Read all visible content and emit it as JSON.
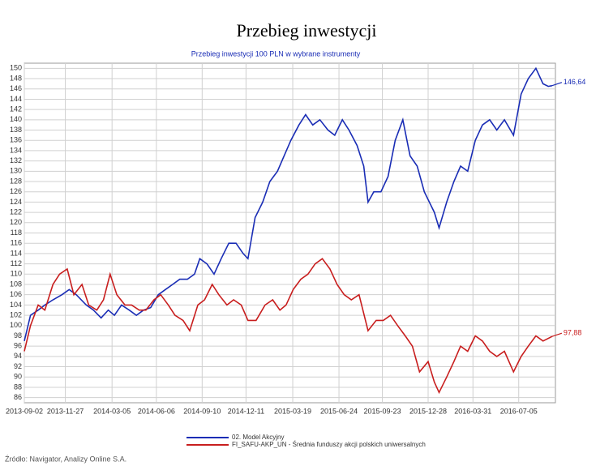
{
  "chart_data": {
    "type": "line",
    "title": "Przebieg inwestycji",
    "subtitle": "Przebieg inwestycji 100 PLN w wybrane instrumenty",
    "source": "Źródło: Navigator, Analizy Online S.A.",
    "xlim": [
      "2013-09-02",
      "2016-09-20"
    ],
    "xticks": [
      "2013-09-02",
      "2013-11-27",
      "2014-03-05",
      "2014-06-06",
      "2014-09-10",
      "2014-12-11",
      "2015-03-19",
      "2015-06-24",
      "2015-09-23",
      "2015-12-28",
      "2016-03-31",
      "2016-07-05"
    ],
    "ylim": [
      85,
      151
    ],
    "yticks": [
      86,
      88,
      90,
      92,
      94,
      96,
      98,
      100,
      102,
      104,
      106,
      108,
      110,
      112,
      114,
      116,
      118,
      120,
      122,
      124,
      126,
      128,
      130,
      132,
      134,
      136,
      138,
      140,
      142,
      144,
      146,
      148,
      150
    ],
    "grid": true,
    "legend": "bottom",
    "series": [
      {
        "name": "02. Model Akcyjny",
        "color": "#1a2db5",
        "end_label": "146,64",
        "x": [
          "2013-09-02",
          "2013-09-15",
          "2013-10-01",
          "2013-10-15",
          "2013-11-01",
          "2013-11-20",
          "2013-12-05",
          "2013-12-20",
          "2014-01-10",
          "2014-01-25",
          "2014-02-10",
          "2014-02-25",
          "2014-03-10",
          "2014-03-25",
          "2014-04-10",
          "2014-04-25",
          "2014-05-10",
          "2014-05-25",
          "2014-06-10",
          "2014-06-25",
          "2014-07-10",
          "2014-07-25",
          "2014-08-10",
          "2014-08-25",
          "2014-09-05",
          "2014-09-20",
          "2014-10-05",
          "2014-10-20",
          "2014-11-05",
          "2014-11-20",
          "2014-12-05",
          "2014-12-15",
          "2014-12-30",
          "2015-01-15",
          "2015-01-30",
          "2015-02-15",
          "2015-03-01",
          "2015-03-15",
          "2015-04-01",
          "2015-04-15",
          "2015-04-30",
          "2015-05-15",
          "2015-06-01",
          "2015-06-15",
          "2015-07-01",
          "2015-07-15",
          "2015-08-01",
          "2015-08-15",
          "2015-08-24",
          "2015-09-05",
          "2015-09-20",
          "2015-10-05",
          "2015-10-20",
          "2015-11-05",
          "2015-11-20",
          "2015-12-05",
          "2015-12-20",
          "2016-01-10",
          "2016-01-20",
          "2016-02-05",
          "2016-02-20",
          "2016-03-05",
          "2016-03-20",
          "2016-04-05",
          "2016-04-20",
          "2016-05-05",
          "2016-05-20",
          "2016-06-05",
          "2016-06-24",
          "2016-07-10",
          "2016-07-25",
          "2016-08-10",
          "2016-08-25",
          "2016-09-05",
          "2016-09-13"
        ],
        "values": [
          97,
          102,
          103,
          104,
          105,
          106,
          107,
          106,
          104,
          103,
          101.5,
          103,
          102,
          104,
          103,
          102,
          103,
          103.5,
          106,
          107,
          108,
          109,
          109,
          110,
          113,
          112,
          110,
          113,
          116,
          116,
          114,
          113,
          121,
          124,
          128,
          130,
          133,
          136,
          139,
          141,
          139,
          140,
          138,
          137,
          140,
          138,
          135,
          131,
          124,
          126,
          126,
          129,
          136,
          140,
          133,
          131,
          126,
          122,
          119,
          124,
          128,
          131,
          130,
          136,
          139,
          140,
          138,
          140,
          137,
          145,
          148,
          150,
          147,
          146.5,
          146.64
        ]
      },
      {
        "name": "FI_SAFU-AKP_UN - Średnia funduszy akcji polskich uniwersalnych",
        "color": "#c81e1e",
        "end_label": "97,88",
        "x": [
          "2013-09-02",
          "2013-09-15",
          "2013-10-01",
          "2013-10-15",
          "2013-11-01",
          "2013-11-15",
          "2013-12-01",
          "2013-12-15",
          "2014-01-01",
          "2014-01-15",
          "2014-02-01",
          "2014-02-15",
          "2014-03-01",
          "2014-03-15",
          "2014-04-01",
          "2014-04-15",
          "2014-05-01",
          "2014-05-15",
          "2014-06-01",
          "2014-06-15",
          "2014-07-01",
          "2014-07-15",
          "2014-08-01",
          "2014-08-15",
          "2014-09-01",
          "2014-09-15",
          "2014-10-01",
          "2014-10-15",
          "2014-11-01",
          "2014-11-15",
          "2014-12-01",
          "2014-12-15",
          "2015-01-01",
          "2015-01-20",
          "2015-02-05",
          "2015-02-20",
          "2015-03-05",
          "2015-03-20",
          "2015-04-05",
          "2015-04-20",
          "2015-05-05",
          "2015-05-20",
          "2015-06-05",
          "2015-06-20",
          "2015-07-05",
          "2015-07-20",
          "2015-08-05",
          "2015-08-24",
          "2015-09-10",
          "2015-09-25",
          "2015-10-10",
          "2015-10-25",
          "2015-11-10",
          "2015-11-25",
          "2015-12-10",
          "2015-12-28",
          "2016-01-10",
          "2016-01-20",
          "2016-02-05",
          "2016-02-20",
          "2016-03-05",
          "2016-03-20",
          "2016-04-05",
          "2016-04-20",
          "2016-05-05",
          "2016-05-20",
          "2016-06-05",
          "2016-06-24",
          "2016-07-10",
          "2016-07-25",
          "2016-08-10",
          "2016-08-25",
          "2016-09-13"
        ],
        "values": [
          95,
          100,
          104,
          103,
          108,
          110,
          111,
          106,
          108,
          104,
          103,
          105,
          110,
          106,
          104,
          104,
          103,
          103,
          105,
          106,
          104,
          102,
          101,
          99,
          104,
          105,
          108,
          106,
          104,
          105,
          104,
          101,
          101,
          104,
          105,
          103,
          104,
          107,
          109,
          110,
          112,
          113,
          111,
          108,
          106,
          105,
          106,
          99,
          101,
          101,
          102,
          100,
          98,
          96,
          91,
          93,
          89,
          87,
          90,
          93,
          96,
          95,
          98,
          97,
          95,
          94,
          95,
          91,
          94,
          96,
          98,
          97,
          97.88
        ]
      }
    ]
  }
}
